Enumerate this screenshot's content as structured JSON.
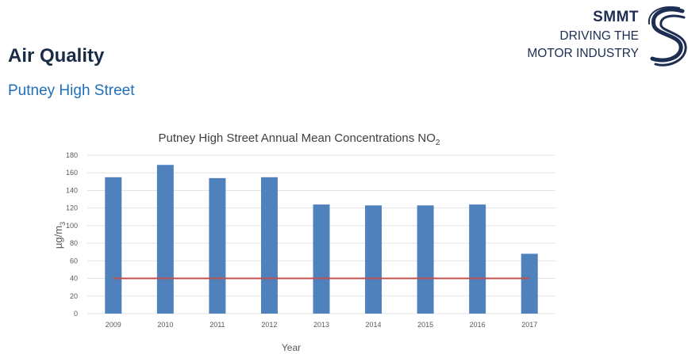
{
  "slide": {
    "title": "Air Quality",
    "subtitle": "Putney High Street"
  },
  "logo": {
    "line1": "SMMT",
    "line2": "DRIVING THE",
    "line3": "MOTOR INDUSTRY",
    "brand_color": "#1e2e52"
  },
  "colors": {
    "title": "#1a2b45",
    "subtitle": "#1f6fb8",
    "bar": "#4f81bd",
    "limit_line": "#c0504d",
    "grid": "#e3e3e3"
  },
  "chart_data": {
    "type": "bar",
    "title": "Putney High Street Annual Mean Concentrations NO",
    "title_subscript": "2",
    "xlabel": "Year",
    "ylabel": "µg/m",
    "ylabel_subscript": "3",
    "categories": [
      "2009",
      "2010",
      "2011",
      "2012",
      "2013",
      "2014",
      "2015",
      "2016",
      "2017"
    ],
    "values": [
      155,
      169,
      154,
      155,
      124,
      123,
      123,
      124,
      68
    ],
    "ylim": [
      0,
      180
    ],
    "yticks": [
      0,
      20,
      40,
      60,
      80,
      100,
      120,
      140,
      160,
      180
    ],
    "limit_line_value": 40,
    "grid": true,
    "legend": "none"
  }
}
